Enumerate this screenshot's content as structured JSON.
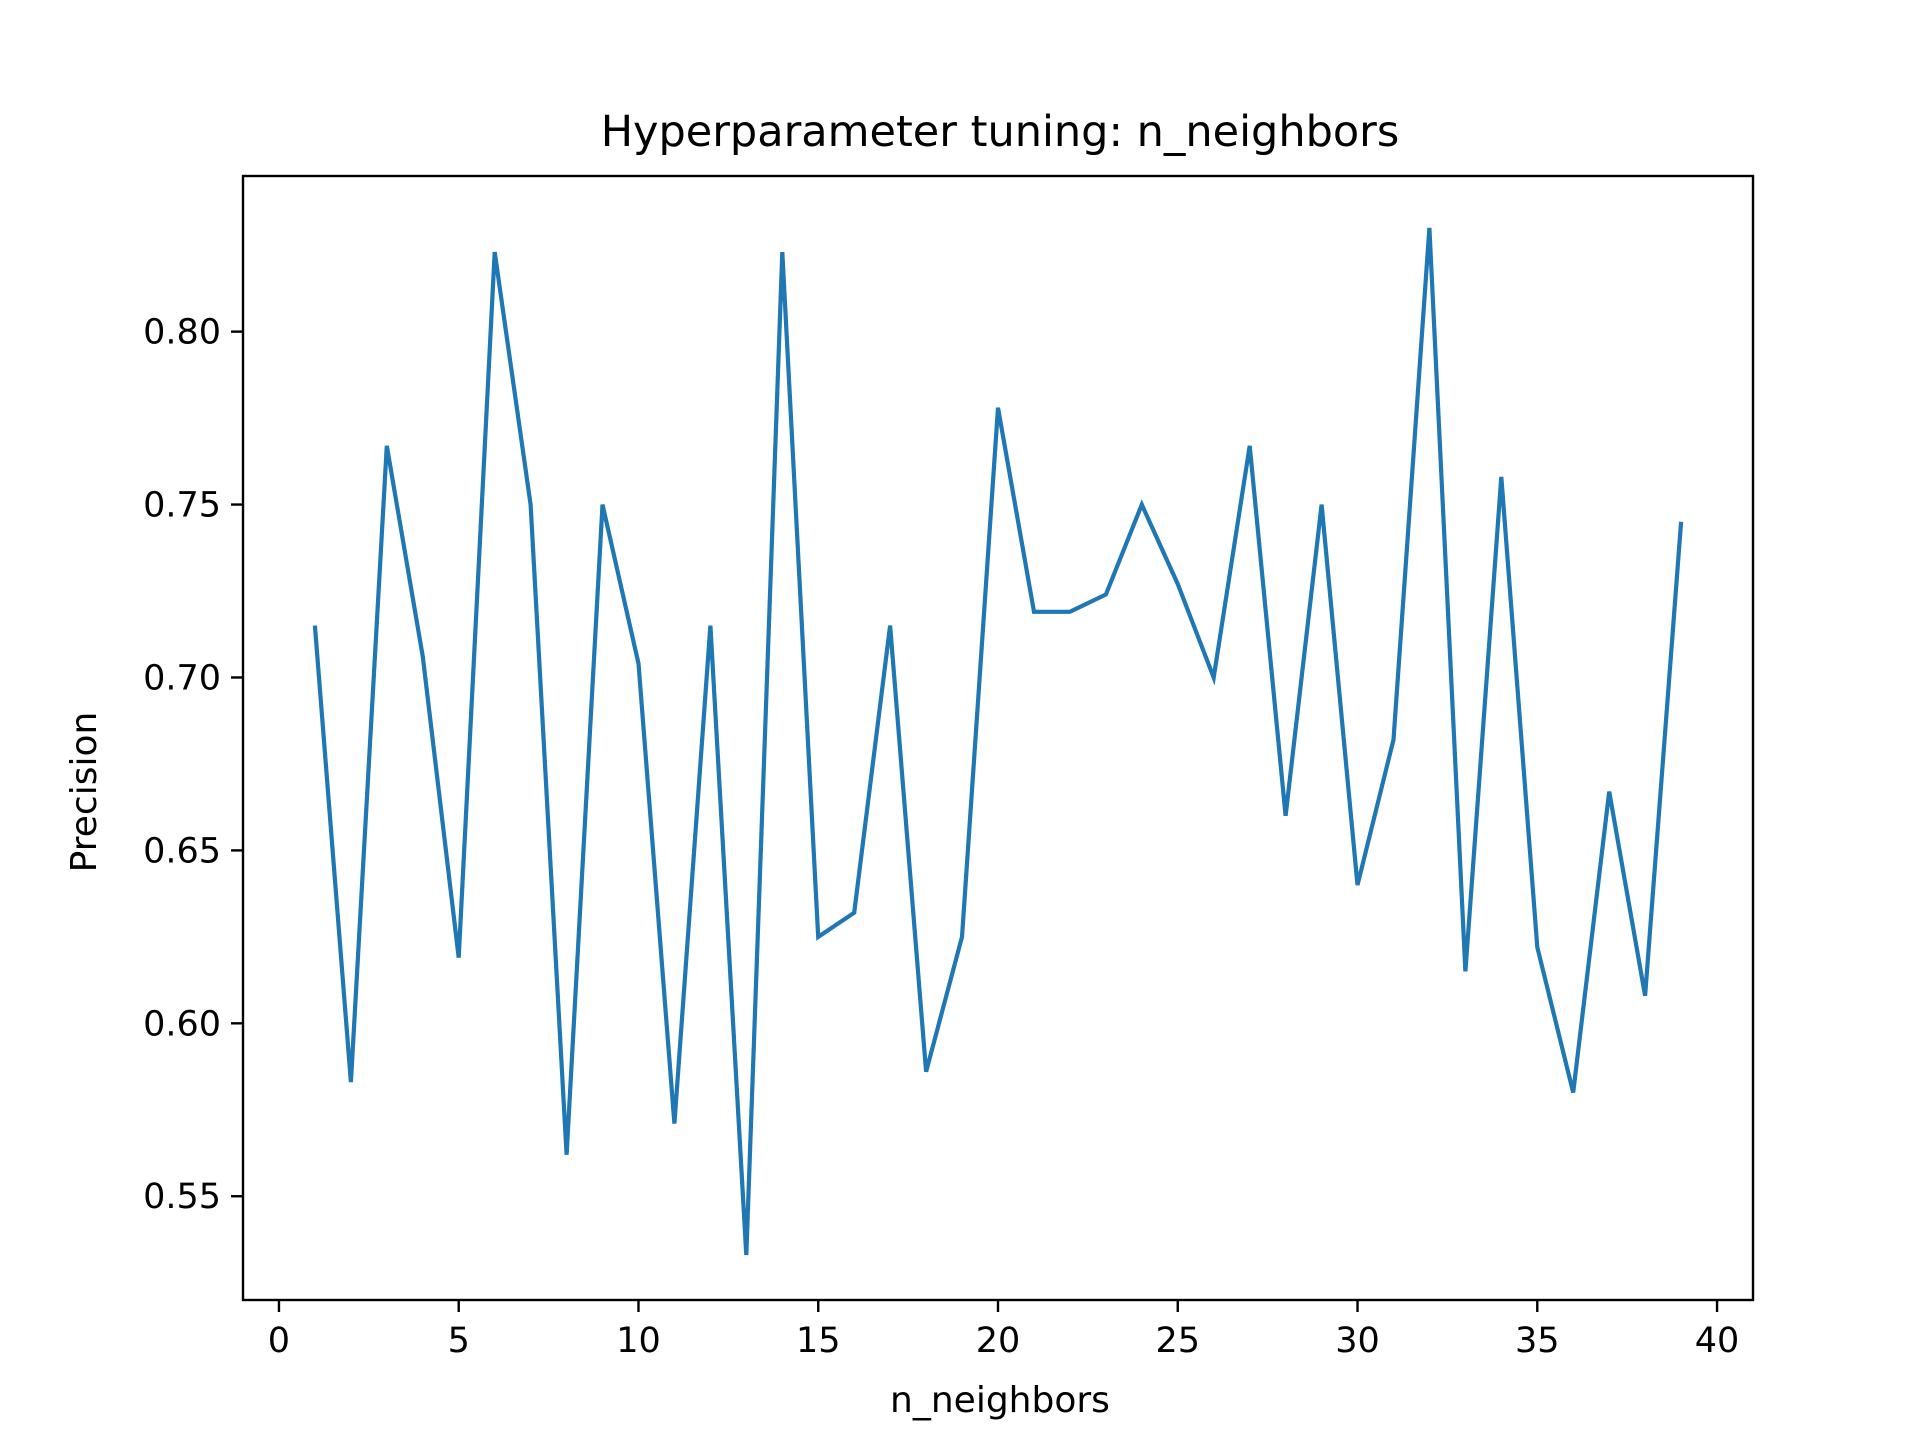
{
  "chart_data": {
    "type": "line",
    "title": "Hyperparameter tuning: n_neighbors",
    "xlabel": "n_neighbors",
    "ylabel": "Precision",
    "xlim": [
      -1,
      41
    ],
    "ylim": [
      0.52,
      0.845
    ],
    "xticks": [
      0,
      5,
      10,
      15,
      20,
      25,
      30,
      35,
      40
    ],
    "xtick_labels": [
      "0",
      "5",
      "10",
      "15",
      "20",
      "25",
      "30",
      "35",
      "40"
    ],
    "yticks": [
      0.55,
      0.6,
      0.65,
      0.7,
      0.75,
      0.8
    ],
    "ytick_labels": [
      "0.55",
      "0.60",
      "0.65",
      "0.70",
      "0.75",
      "0.80"
    ],
    "grid": false,
    "line_color": "#1f77b4",
    "x": [
      1,
      2,
      3,
      4,
      5,
      6,
      7,
      8,
      9,
      10,
      11,
      12,
      13,
      14,
      15,
      16,
      17,
      18,
      19,
      20,
      21,
      22,
      23,
      24,
      25,
      26,
      27,
      28,
      29,
      30,
      31,
      32,
      33,
      34,
      35,
      36,
      37,
      38,
      39
    ],
    "y": [
      0.715,
      0.583,
      0.767,
      0.706,
      0.619,
      0.823,
      0.75,
      0.562,
      0.75,
      0.704,
      0.571,
      0.715,
      0.533,
      0.823,
      0.625,
      0.632,
      0.715,
      0.586,
      0.625,
      0.778,
      0.719,
      0.719,
      0.724,
      0.75,
      0.727,
      0.7,
      0.767,
      0.66,
      0.75,
      0.64,
      0.682,
      0.83,
      0.615,
      0.758,
      0.622,
      0.58,
      0.667,
      0.608,
      0.745
    ]
  }
}
